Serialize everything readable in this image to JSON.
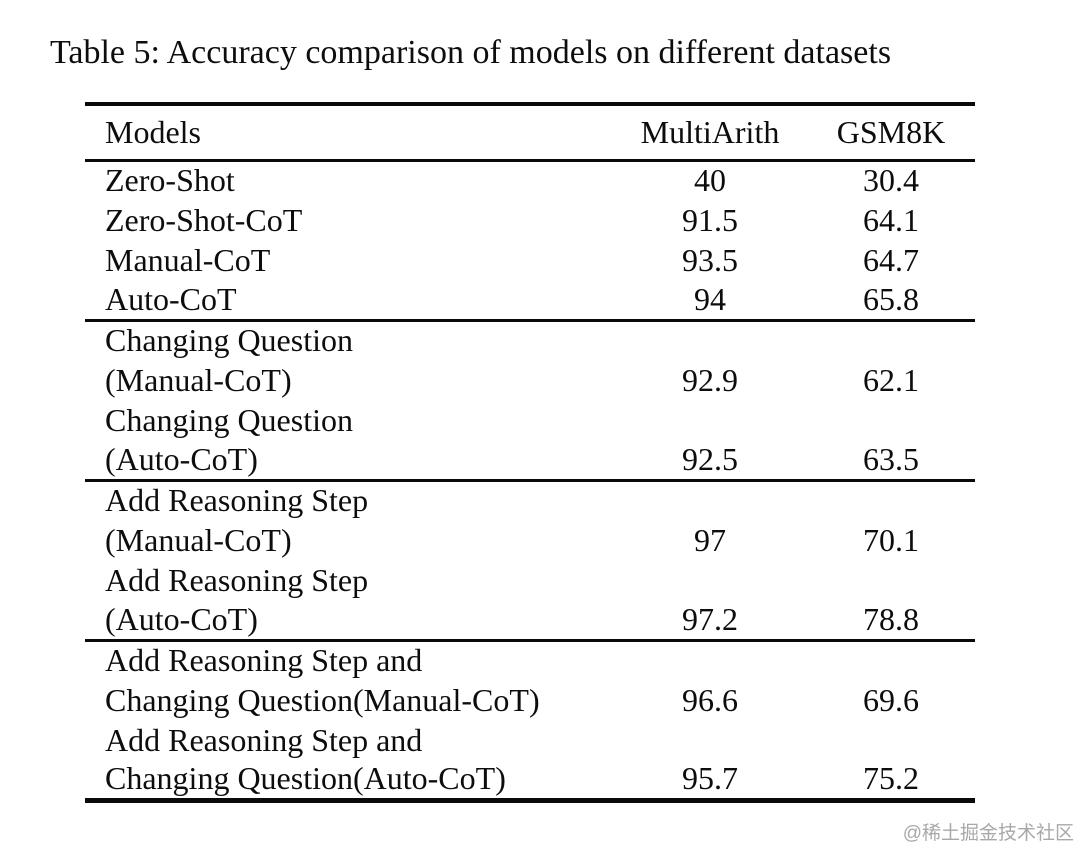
{
  "title": "Table 5: Accuracy comparison of models on different datasets",
  "watermark": "@稀土掘金技术社区",
  "table": {
    "columns": [
      "Models",
      "MultiArith",
      "GSM8K"
    ],
    "groups": [
      {
        "rows": [
          {
            "lines": [
              "Zero-Shot"
            ],
            "values": [
              "40",
              "30.4"
            ]
          },
          {
            "lines": [
              "Zero-Shot-CoT"
            ],
            "values": [
              "91.5",
              "64.1"
            ]
          },
          {
            "lines": [
              "Manual-CoT"
            ],
            "values": [
              "93.5",
              "64.7"
            ]
          },
          {
            "lines": [
              "Auto-CoT"
            ],
            "values": [
              "94",
              "65.8"
            ]
          }
        ]
      },
      {
        "rows": [
          {
            "lines": [
              "Changing Question",
              "(Manual-CoT)"
            ],
            "values": [
              "92.9",
              "62.1"
            ]
          },
          {
            "lines": [
              "Changing Question",
              "(Auto-CoT)"
            ],
            "values": [
              "92.5",
              "63.5"
            ]
          }
        ]
      },
      {
        "rows": [
          {
            "lines": [
              "Add Reasoning Step",
              "(Manual-CoT)"
            ],
            "values": [
              "97",
              "70.1"
            ]
          },
          {
            "lines": [
              "Add Reasoning Step",
              "(Auto-CoT)"
            ],
            "values": [
              "97.2",
              "78.8"
            ]
          }
        ]
      },
      {
        "rows": [
          {
            "lines": [
              "Add Reasoning Step and",
              "Changing Question(Manual-CoT)"
            ],
            "values": [
              "96.6",
              "69.6"
            ]
          },
          {
            "lines": [
              "Add Reasoning Step and",
              "Changing Question(Auto-CoT)"
            ],
            "values": [
              "95.7",
              "75.2"
            ]
          }
        ]
      }
    ]
  },
  "chart_data": {
    "type": "table",
    "title": "Table 5: Accuracy comparison of models on different datasets",
    "columns": [
      "Models",
      "MultiArith",
      "GSM8K"
    ],
    "rows": [
      [
        "Zero-Shot",
        40,
        30.4
      ],
      [
        "Zero-Shot-CoT",
        91.5,
        64.1
      ],
      [
        "Manual-CoT",
        93.5,
        64.7
      ],
      [
        "Auto-CoT",
        94,
        65.8
      ],
      [
        "Changing Question (Manual-CoT)",
        92.9,
        62.1
      ],
      [
        "Changing Question (Auto-CoT)",
        92.5,
        63.5
      ],
      [
        "Add Reasoning Step (Manual-CoT)",
        97,
        70.1
      ],
      [
        "Add Reasoning Step (Auto-CoT)",
        97.2,
        78.8
      ],
      [
        "Add Reasoning Step and Changing Question(Manual-CoT)",
        96.6,
        69.6
      ],
      [
        "Add Reasoning Step and Changing Question(Auto-CoT)",
        95.7,
        75.2
      ]
    ]
  }
}
